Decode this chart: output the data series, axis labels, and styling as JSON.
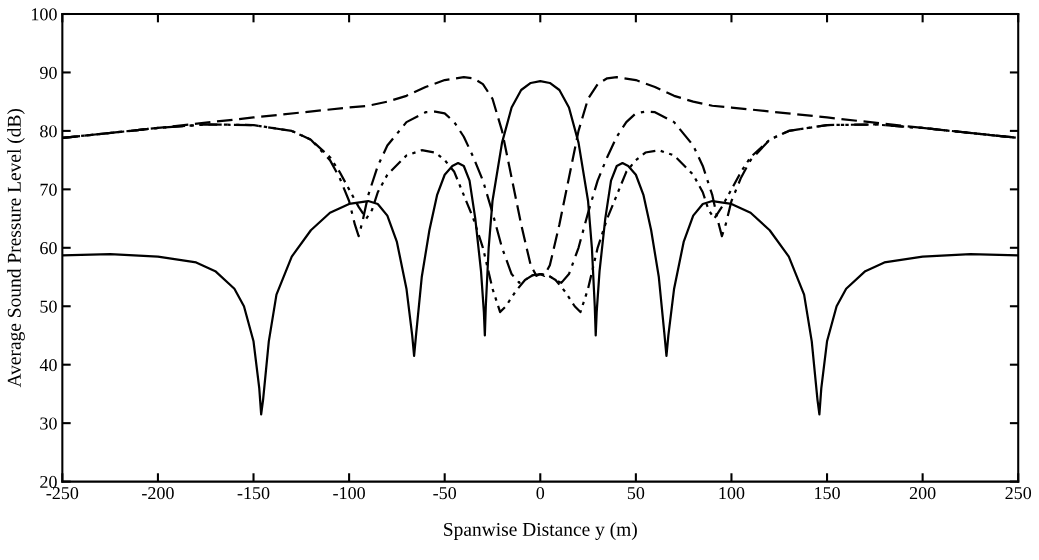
{
  "chart_data": {
    "type": "line",
    "xlabel": "Spanwise Distance y (m)",
    "ylabel": "Average Sound Pressure Level (dB)",
    "xlim": [
      -250,
      250
    ],
    "xticks": [
      -250,
      -200,
      -150,
      -100,
      -50,
      0,
      50,
      100,
      150,
      200,
      250
    ],
    "ylim": [
      20,
      100
    ],
    "yticks": [
      20,
      30,
      40,
      50,
      60,
      70,
      80,
      90,
      100
    ],
    "grid": false,
    "legend": false,
    "series": [
      {
        "color": "#000000",
        "line_style": "solid",
        "x": [
          -250,
          -225,
          -200,
          -180,
          -170,
          -160,
          -155,
          -150,
          -147,
          -146,
          -145,
          -142,
          -138,
          -130,
          -120,
          -110,
          -100,
          -90,
          -85,
          -80,
          -75,
          -70,
          -67,
          -66,
          -65,
          -62,
          -58,
          -54,
          -50,
          -46,
          -43,
          -40,
          -37,
          -34,
          -31,
          -29.5,
          -29,
          -28.5,
          -27,
          -25,
          -20,
          -15,
          -10,
          -5,
          0,
          5,
          10,
          15,
          20,
          25,
          27,
          28.5,
          29,
          29.5,
          31,
          34,
          37,
          40,
          43,
          46,
          50,
          54,
          58,
          62,
          65,
          66,
          67,
          70,
          75,
          80,
          85,
          90,
          100,
          110,
          120,
          130,
          138,
          142,
          145,
          146,
          147,
          150,
          155,
          160,
          170,
          180,
          200,
          225,
          250
        ],
        "values": [
          58.7,
          58.9,
          58.5,
          57.5,
          56,
          53,
          50,
          44,
          36,
          31.5,
          34,
          44,
          52,
          58.5,
          63,
          66,
          67.5,
          68,
          67.5,
          65.5,
          61,
          53,
          45,
          41.5,
          45,
          55,
          63,
          69,
          72.5,
          74,
          74.5,
          74,
          71.5,
          65,
          56,
          49,
          45,
          50,
          60,
          68,
          78,
          84,
          87,
          88.2,
          88.5,
          88.2,
          87,
          84,
          78,
          68,
          60,
          50,
          45,
          49,
          56,
          65,
          71.5,
          74,
          74.5,
          74,
          72.5,
          69,
          63,
          55,
          45,
          41.5,
          45,
          53,
          61,
          65.5,
          67.5,
          68,
          67.5,
          66,
          63,
          58.5,
          52,
          44,
          34,
          31.5,
          36,
          44,
          50,
          53,
          56,
          57.5,
          58.5,
          58.9,
          58.7
        ]
      },
      {
        "color": "#000000",
        "line_style": "dashed",
        "x": [
          -250,
          -200,
          -150,
          -100,
          -90,
          -80,
          -70,
          -60,
          -50,
          -40,
          -35,
          -30,
          -25,
          -20,
          -15,
          -10,
          -5,
          -2,
          0,
          2,
          5,
          10,
          15,
          20,
          25,
          30,
          35,
          40,
          50,
          60,
          70,
          80,
          90,
          100,
          150,
          200,
          250
        ],
        "values": [
          78.8,
          80.5,
          82.3,
          84,
          84.3,
          85,
          86,
          87.5,
          88.7,
          89.2,
          89,
          88,
          85.5,
          80,
          72,
          64,
          57,
          55.2,
          55.5,
          55.2,
          57,
          64,
          72,
          80,
          85.5,
          88,
          89,
          89.2,
          88.7,
          87.5,
          86,
          85,
          84.3,
          84,
          82.3,
          80.5,
          78.8
        ]
      },
      {
        "color": "#000000",
        "line_style": "dashdot",
        "x": [
          -250,
          -200,
          -175,
          -150,
          -130,
          -120,
          -110,
          -105,
          -100,
          -97,
          -95,
          -93,
          -90,
          -85,
          -80,
          -70,
          -60,
          -55,
          -50,
          -45,
          -40,
          -35,
          -30,
          -25,
          -20,
          -15,
          -11,
          -8,
          -4,
          0,
          4,
          8,
          11,
          15,
          20,
          25,
          30,
          35,
          40,
          45,
          50,
          55,
          60,
          70,
          80,
          85,
          90,
          93,
          95,
          97,
          100,
          105,
          110,
          120,
          130,
          150,
          175,
          200,
          250
        ],
        "values": [
          78.8,
          80.5,
          81.1,
          81,
          80,
          78.5,
          75,
          72,
          68,
          64,
          62,
          64.5,
          69,
          74,
          77.5,
          81.5,
          83.2,
          83.3,
          83,
          81.5,
          79,
          75.5,
          71.5,
          66,
          60,
          55.5,
          54,
          54.5,
          55.3,
          55.5,
          55.3,
          54.5,
          54,
          55.5,
          60,
          66,
          71.5,
          75.5,
          79,
          81.5,
          83,
          83.3,
          83.2,
          81.5,
          77.5,
          74,
          69,
          64.5,
          62,
          64,
          68,
          72,
          75,
          78.5,
          80,
          81,
          81.1,
          80.5,
          78.8
        ]
      },
      {
        "color": "#000000",
        "line_style": "dashdotdot",
        "x": [
          -250,
          -200,
          -175,
          -150,
          -130,
          -120,
          -110,
          -105,
          -100,
          -95,
          -91,
          -88,
          -85,
          -80,
          -70,
          -62,
          -55,
          -50,
          -45,
          -40,
          -35,
          -30,
          -25,
          -21,
          -18,
          -13,
          -8,
          -4,
          0,
          4,
          8,
          13,
          18,
          21,
          25,
          30,
          35,
          40,
          45,
          50,
          55,
          62,
          70,
          80,
          85,
          88,
          91,
          95,
          100,
          105,
          110,
          120,
          130,
          150,
          175,
          200,
          250
        ],
        "values": [
          78.8,
          80.5,
          81.1,
          81,
          80,
          78.5,
          75.5,
          73,
          70,
          67,
          65,
          66.5,
          69.5,
          72.5,
          75.8,
          76.7,
          76.3,
          75,
          73,
          69,
          65,
          60,
          53,
          49,
          50,
          52.5,
          54.5,
          55.3,
          55.5,
          55.3,
          54.5,
          52.5,
          50,
          49,
          53,
          60,
          65,
          69,
          73,
          75,
          76.3,
          76.7,
          75.8,
          72.5,
          69.5,
          66.5,
          65,
          67,
          70,
          73,
          75.5,
          78.5,
          80,
          81,
          81.1,
          80.5,
          78.8
        ]
      }
    ]
  }
}
